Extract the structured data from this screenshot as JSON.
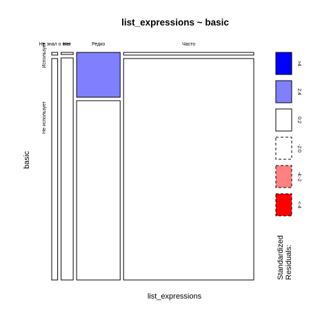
{
  "chart_data": {
    "type": "mosaic",
    "title": "list_expressions ~ basic",
    "xlabel": "list_expressions",
    "ylabel": "basic",
    "x_categories": [
      "Не знал о них",
      "Нет",
      "Редко",
      "Часто"
    ],
    "y_categories": [
      "Использует",
      "Не использует"
    ],
    "column_proportions": [
      0.031,
      0.063,
      0.227,
      0.679
    ],
    "cells": [
      {
        "x": "Не знал о них",
        "y": "Использует",
        "share": 0.012,
        "residual_band": "<-2:0"
      },
      {
        "x": "Не знал о них",
        "y": "Не использует",
        "share": 0.988,
        "residual_band": "0:2"
      },
      {
        "x": "Нет",
        "y": "Использует",
        "share": 0.0,
        "residual_band": "<-2:0"
      },
      {
        "x": "Нет",
        "y": "Не использует",
        "share": 1.0,
        "residual_band": "0:2"
      },
      {
        "x": "Редко",
        "y": "Использует",
        "share": 0.2,
        "residual_band": "2:4"
      },
      {
        "x": "Редко",
        "y": "Не использует",
        "share": 0.8,
        "residual_band": "<-2:0"
      },
      {
        "x": "Часто",
        "y": "Использует",
        "share": 0.012,
        "residual_band": "<-2:0"
      },
      {
        "x": "Часто",
        "y": "Не использует",
        "share": 0.988,
        "residual_band": "0:2"
      }
    ],
    "legend": {
      "title_lines": [
        "Standardized",
        "Residuals:"
      ],
      "items": [
        {
          "label": ">4",
          "fill": "#0000ff",
          "dashed": false
        },
        {
          "label": "2:4",
          "fill": "#8080ff",
          "dashed": false
        },
        {
          "label": "0:2",
          "fill": "#ffffff",
          "dashed": false
        },
        {
          "label": "-2:0",
          "fill": "#ffffff",
          "dashed": true
        },
        {
          "label": "-4:-2",
          "fill": "#ff8080",
          "dashed": true
        },
        {
          "label": "<-4",
          "fill": "#ff0000",
          "dashed": true
        }
      ]
    }
  }
}
